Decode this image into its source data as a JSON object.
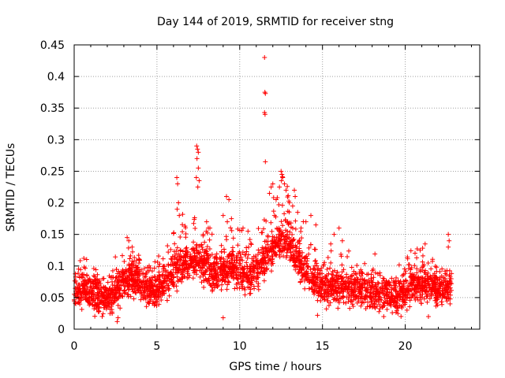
{
  "chart_data": {
    "type": "scatter",
    "title": "Day 144 of 2019, SRMTID for receiver stng",
    "xlabel": "GPS time / hours",
    "ylabel": "SRMTID / TECUs",
    "xlim": [
      0,
      24.5
    ],
    "ylim": [
      0,
      0.45
    ],
    "xticks": [
      0,
      5,
      10,
      15,
      20
    ],
    "yticks": [
      0,
      0.05,
      0.1,
      0.15,
      0.2,
      0.25,
      0.3,
      0.35,
      0.4,
      0.45
    ],
    "xtick_labels": [
      "0",
      "5",
      "10",
      "15",
      "20"
    ],
    "ytick_labels": [
      "0",
      "0.05",
      "0.1",
      "0.15",
      "0.2",
      "0.25",
      "0.3",
      "0.35",
      "0.4",
      "0.45"
    ],
    "grid": true,
    "marker": "+",
    "colors": {
      "points": "#ff0000",
      "grid": "#a0a0a0",
      "axis": "#000000"
    },
    "series": [
      {
        "name": "SRMTID",
        "envelope": [
          {
            "x": 0.0,
            "y": 0.055
          },
          {
            "x": 0.5,
            "y": 0.065
          },
          {
            "x": 1.0,
            "y": 0.06
          },
          {
            "x": 1.5,
            "y": 0.05
          },
          {
            "x": 2.0,
            "y": 0.045
          },
          {
            "x": 2.5,
            "y": 0.06
          },
          {
            "x": 3.0,
            "y": 0.075
          },
          {
            "x": 3.5,
            "y": 0.08
          },
          {
            "x": 4.0,
            "y": 0.07
          },
          {
            "x": 4.5,
            "y": 0.065
          },
          {
            "x": 5.0,
            "y": 0.06
          },
          {
            "x": 5.5,
            "y": 0.07
          },
          {
            "x": 6.0,
            "y": 0.09
          },
          {
            "x": 6.5,
            "y": 0.1
          },
          {
            "x": 7.0,
            "y": 0.105
          },
          {
            "x": 7.5,
            "y": 0.11
          },
          {
            "x": 8.0,
            "y": 0.1
          },
          {
            "x": 8.5,
            "y": 0.085
          },
          {
            "x": 9.0,
            "y": 0.09
          },
          {
            "x": 9.5,
            "y": 0.1
          },
          {
            "x": 10.0,
            "y": 0.09
          },
          {
            "x": 10.5,
            "y": 0.085
          },
          {
            "x": 11.0,
            "y": 0.09
          },
          {
            "x": 11.5,
            "y": 0.11
          },
          {
            "x": 12.0,
            "y": 0.13
          },
          {
            "x": 12.5,
            "y": 0.14
          },
          {
            "x": 13.0,
            "y": 0.13
          },
          {
            "x": 13.5,
            "y": 0.11
          },
          {
            "x": 14.0,
            "y": 0.09
          },
          {
            "x": 14.5,
            "y": 0.075
          },
          {
            "x": 15.0,
            "y": 0.07
          },
          {
            "x": 15.5,
            "y": 0.065
          },
          {
            "x": 16.0,
            "y": 0.07
          },
          {
            "x": 16.5,
            "y": 0.065
          },
          {
            "x": 17.0,
            "y": 0.06
          },
          {
            "x": 17.5,
            "y": 0.065
          },
          {
            "x": 18.0,
            "y": 0.06
          },
          {
            "x": 18.5,
            "y": 0.055
          },
          {
            "x": 19.0,
            "y": 0.055
          },
          {
            "x": 19.5,
            "y": 0.05
          },
          {
            "x": 20.0,
            "y": 0.055
          },
          {
            "x": 20.5,
            "y": 0.07
          },
          {
            "x": 21.0,
            "y": 0.075
          },
          {
            "x": 21.5,
            "y": 0.07
          },
          {
            "x": 22.0,
            "y": 0.065
          },
          {
            "x": 22.5,
            "y": 0.06
          },
          {
            "x": 22.8,
            "y": 0.065
          }
        ],
        "spread": 0.025,
        "points_per_hour": 130,
        "x_end": 22.8,
        "outliers": [
          {
            "x": 11.5,
            "y": 0.43
          },
          {
            "x": 11.52,
            "y": 0.375
          },
          {
            "x": 11.55,
            "y": 0.373
          },
          {
            "x": 11.5,
            "y": 0.343
          },
          {
            "x": 11.53,
            "y": 0.34
          },
          {
            "x": 11.55,
            "y": 0.265
          },
          {
            "x": 7.4,
            "y": 0.29
          },
          {
            "x": 7.45,
            "y": 0.285
          },
          {
            "x": 7.5,
            "y": 0.28
          },
          {
            "x": 7.42,
            "y": 0.27
          },
          {
            "x": 7.5,
            "y": 0.255
          },
          {
            "x": 7.38,
            "y": 0.24
          },
          {
            "x": 7.55,
            "y": 0.235
          },
          {
            "x": 7.47,
            "y": 0.225
          },
          {
            "x": 6.2,
            "y": 0.24
          },
          {
            "x": 6.25,
            "y": 0.23
          },
          {
            "x": 6.3,
            "y": 0.2
          },
          {
            "x": 6.22,
            "y": 0.19
          },
          {
            "x": 6.35,
            "y": 0.18
          },
          {
            "x": 9.2,
            "y": 0.21
          },
          {
            "x": 9.35,
            "y": 0.205
          },
          {
            "x": 9.0,
            "y": 0.18
          },
          {
            "x": 9.5,
            "y": 0.175
          },
          {
            "x": 9.25,
            "y": 0.17
          },
          {
            "x": 12.5,
            "y": 0.25
          },
          {
            "x": 12.55,
            "y": 0.245
          },
          {
            "x": 12.6,
            "y": 0.24
          },
          {
            "x": 12.52,
            "y": 0.235
          },
          {
            "x": 12.7,
            "y": 0.23
          },
          {
            "x": 12.4,
            "y": 0.225
          },
          {
            "x": 12.0,
            "y": 0.23
          },
          {
            "x": 11.9,
            "y": 0.225
          },
          {
            "x": 12.8,
            "y": 0.22
          },
          {
            "x": 13.3,
            "y": 0.22
          },
          {
            "x": 13.35,
            "y": 0.21
          },
          {
            "x": 13.2,
            "y": 0.195
          },
          {
            "x": 13.5,
            "y": 0.185
          },
          {
            "x": 13.0,
            "y": 0.2
          },
          {
            "x": 12.2,
            "y": 0.205
          },
          {
            "x": 11.8,
            "y": 0.215
          },
          {
            "x": 12.1,
            "y": 0.18
          },
          {
            "x": 12.9,
            "y": 0.17
          },
          {
            "x": 14.0,
            "y": 0.17
          },
          {
            "x": 14.3,
            "y": 0.18
          },
          {
            "x": 14.6,
            "y": 0.165
          },
          {
            "x": 8.0,
            "y": 0.17
          },
          {
            "x": 8.2,
            "y": 0.16
          },
          {
            "x": 7.8,
            "y": 0.15
          },
          {
            "x": 10.2,
            "y": 0.16
          },
          {
            "x": 10.5,
            "y": 0.155
          },
          {
            "x": 3.2,
            "y": 0.145
          },
          {
            "x": 3.3,
            "y": 0.14
          },
          {
            "x": 3.5,
            "y": 0.13
          },
          {
            "x": 16.0,
            "y": 0.16
          },
          {
            "x": 15.7,
            "y": 0.15
          },
          {
            "x": 16.2,
            "y": 0.14
          },
          {
            "x": 15.5,
            "y": 0.135
          },
          {
            "x": 22.6,
            "y": 0.15
          },
          {
            "x": 22.65,
            "y": 0.14
          },
          {
            "x": 22.6,
            "y": 0.13
          },
          {
            "x": 21.2,
            "y": 0.135
          },
          {
            "x": 20.9,
            "y": 0.125
          },
          {
            "x": 2.6,
            "y": 0.012
          },
          {
            "x": 2.65,
            "y": 0.018
          },
          {
            "x": 9.0,
            "y": 0.018
          },
          {
            "x": 14.7,
            "y": 0.022
          },
          {
            "x": 18.7,
            "y": 0.02
          },
          {
            "x": 21.4,
            "y": 0.02
          }
        ]
      }
    ]
  }
}
